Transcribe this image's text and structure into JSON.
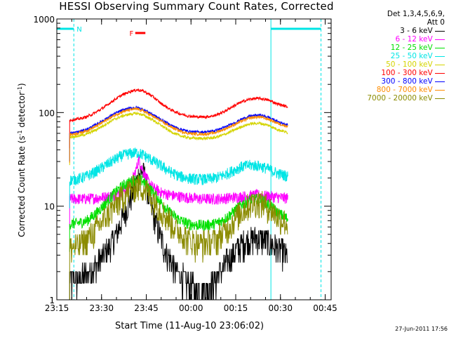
{
  "chart_data": {
    "type": "line",
    "title": "HESSI Observing Summary Count Rates, Corrected",
    "ylabel_prefix": "Corrected Count Rate (s",
    "ylabel_sup": "-1",
    "ylabel_mid": " detector",
    "ylabel_sup2": "-1",
    "ylabel_suffix": ")",
    "xlabel": "Start Time (11-Aug-10 23:06:02)",
    "yscale": "log",
    "ylim": [
      1,
      1000
    ],
    "xlim": [
      9,
      101
    ],
    "x_unit": "minutes after 23:06:02",
    "xticks": [
      {
        "t": 9,
        "label": "23:15"
      },
      {
        "t": 24,
        "label": "23:30"
      },
      {
        "t": 39,
        "label": "23:45"
      },
      {
        "t": 54,
        "label": "00:00"
      },
      {
        "t": 69,
        "label": "00:15"
      },
      {
        "t": 84,
        "label": "00:30"
      },
      {
        "t": 99,
        "label": "00:45"
      }
    ],
    "yticks": [
      {
        "v": 1,
        "label": "1"
      },
      {
        "v": 10,
        "label": "10"
      },
      {
        "v": 100,
        "label": "100"
      },
      {
        "v": 1000,
        "label": "1000"
      }
    ],
    "legend_header": [
      "Det 1,3,4,5,6,9,",
      "Att 0"
    ],
    "annotations": [
      {
        "label": "N",
        "t": 14.7,
        "color": "#00e5e5",
        "bar": [
          0,
          14.7
        ],
        "bar2": [
          80.8,
          97.6
        ]
      },
      {
        "label": "F",
        "t": 35,
        "color": "#ff0000",
        "bar": [
          35.3,
          38.7
        ]
      }
    ],
    "vlines": [
      {
        "t": 14.7,
        "style": "dash"
      },
      {
        "t": 80.8,
        "style": "solid"
      },
      {
        "t": 97.6,
        "style": "dash"
      }
    ],
    "observation_start": 13.3,
    "observation_end": 86.5,
    "series": [
      {
        "name": "3 - 6 keV",
        "color": "#000000",
        "points": [
          [
            13.3,
            1.6
          ],
          [
            17,
            1.7
          ],
          [
            21,
            2.1
          ],
          [
            25,
            3
          ],
          [
            29,
            5
          ],
          [
            32,
            9
          ],
          [
            34,
            13
          ],
          [
            35.5,
            17
          ],
          [
            36.5,
            22
          ],
          [
            37.5,
            24
          ],
          [
            38.5,
            21
          ],
          [
            40,
            12
          ],
          [
            42,
            7
          ],
          [
            44,
            4.5
          ],
          [
            46,
            3
          ],
          [
            49,
            2.1
          ],
          [
            52,
            1.6
          ],
          [
            55,
            1.3
          ],
          [
            58,
            1.3
          ],
          [
            61,
            1.5
          ],
          [
            64,
            2
          ],
          [
            67,
            2.9
          ],
          [
            70,
            3.7
          ],
          [
            73,
            4.4
          ],
          [
            76,
            4.6
          ],
          [
            79,
            4.4
          ],
          [
            82,
            3.8
          ],
          [
            85,
            3.2
          ],
          [
            86.5,
            2.8
          ]
        ]
      },
      {
        "name": "6 - 12 keV",
        "color": "#ff00ff",
        "points": [
          [
            13.3,
            12
          ],
          [
            18,
            12
          ],
          [
            23,
            12.3
          ],
          [
            28,
            13
          ],
          [
            32,
            15
          ],
          [
            34,
            18
          ],
          [
            35.5,
            24
          ],
          [
            36.5,
            32
          ],
          [
            37.5,
            26
          ],
          [
            39,
            20
          ],
          [
            41,
            16
          ],
          [
            44,
            14
          ],
          [
            48,
            13
          ],
          [
            52,
            12.5
          ],
          [
            57,
            12
          ],
          [
            62,
            12
          ],
          [
            67,
            12.3
          ],
          [
            72,
            12.8
          ],
          [
            76,
            13.2
          ],
          [
            80,
            12.8
          ],
          [
            84,
            12.4
          ],
          [
            86.5,
            12.2
          ]
        ]
      },
      {
        "name": "12 - 25 keV",
        "color": "#00e000",
        "points": [
          [
            13.3,
            6.5
          ],
          [
            16,
            6.6
          ],
          [
            19,
            7
          ],
          [
            22,
            8.3
          ],
          [
            25,
            10.5
          ],
          [
            28,
            13.5
          ],
          [
            31,
            16.5
          ],
          [
            34,
            18.5
          ],
          [
            36,
            19.5
          ],
          [
            38,
            18.5
          ],
          [
            41,
            14.5
          ],
          [
            44,
            11
          ],
          [
            47,
            8.5
          ],
          [
            50,
            7.2
          ],
          [
            53,
            6.5
          ],
          [
            56,
            6.3
          ],
          [
            59,
            6.3
          ],
          [
            62,
            6.5
          ],
          [
            65,
            7.2
          ],
          [
            68,
            8.6
          ],
          [
            71,
            10.5
          ],
          [
            74,
            11.8
          ],
          [
            77,
            12
          ],
          [
            80,
            10.5
          ],
          [
            83,
            8.6
          ],
          [
            86.5,
            7.3
          ]
        ]
      },
      {
        "name": "25 - 50 keV",
        "color": "#00e5e5",
        "points": [
          [
            13.3,
            19
          ],
          [
            16,
            19.5
          ],
          [
            19,
            21
          ],
          [
            22,
            23.5
          ],
          [
            25,
            27
          ],
          [
            28,
            31
          ],
          [
            31,
            35
          ],
          [
            34,
            37
          ],
          [
            36,
            37.5
          ],
          [
            38,
            35.5
          ],
          [
            41,
            31
          ],
          [
            44,
            27
          ],
          [
            47,
            23.5
          ],
          [
            50,
            21
          ],
          [
            53,
            20
          ],
          [
            56,
            19.5
          ],
          [
            59,
            19.5
          ],
          [
            62,
            20
          ],
          [
            65,
            21.5
          ],
          [
            68,
            24
          ],
          [
            71,
            26.5
          ],
          [
            74,
            27.5
          ],
          [
            77,
            27
          ],
          [
            80,
            25
          ],
          [
            83,
            22.5
          ],
          [
            86.5,
            21
          ]
        ]
      },
      {
        "name": "50 - 100 keV",
        "color": "#d4d400",
        "points": [
          [
            13.3,
            55
          ],
          [
            16,
            56
          ],
          [
            19,
            59
          ],
          [
            22,
            65
          ],
          [
            25,
            74
          ],
          [
            28,
            84
          ],
          [
            31,
            92
          ],
          [
            34,
            97
          ],
          [
            36,
            98
          ],
          [
            38,
            94
          ],
          [
            41,
            84
          ],
          [
            44,
            73
          ],
          [
            47,
            63
          ],
          [
            50,
            57
          ],
          [
            53,
            54
          ],
          [
            56,
            53
          ],
          [
            59,
            53
          ],
          [
            62,
            54
          ],
          [
            65,
            58
          ],
          [
            68,
            64
          ],
          [
            71,
            71
          ],
          [
            74,
            76
          ],
          [
            77,
            77
          ],
          [
            80,
            73
          ],
          [
            83,
            66
          ],
          [
            86.5,
            61
          ]
        ]
      },
      {
        "name": "100 - 300 keV",
        "color": "#ff0000",
        "points": [
          [
            13.3,
            83
          ],
          [
            16,
            85
          ],
          [
            19,
            90
          ],
          [
            22,
            100
          ],
          [
            25,
            115
          ],
          [
            28,
            135
          ],
          [
            31,
            155
          ],
          [
            34,
            170
          ],
          [
            36,
            175
          ],
          [
            38,
            170
          ],
          [
            41,
            150
          ],
          [
            44,
            125
          ],
          [
            47,
            108
          ],
          [
            50,
            98
          ],
          [
            53,
            92
          ],
          [
            56,
            90
          ],
          [
            59,
            90
          ],
          [
            62,
            93
          ],
          [
            65,
            102
          ],
          [
            68,
            116
          ],
          [
            71,
            130
          ],
          [
            74,
            140
          ],
          [
            77,
            142
          ],
          [
            80,
            136
          ],
          [
            83,
            124
          ],
          [
            86.5,
            115
          ]
        ]
      },
      {
        "name": "300 - 800 keV",
        "color": "#0000ff",
        "points": [
          [
            13.3,
            60
          ],
          [
            16,
            62
          ],
          [
            19,
            66
          ],
          [
            22,
            74
          ],
          [
            25,
            84
          ],
          [
            28,
            96
          ],
          [
            31,
            106
          ],
          [
            34,
            112
          ],
          [
            36,
            113
          ],
          [
            38,
            108
          ],
          [
            41,
            96
          ],
          [
            44,
            84
          ],
          [
            47,
            74
          ],
          [
            50,
            67
          ],
          [
            53,
            63
          ],
          [
            56,
            62
          ],
          [
            59,
            62
          ],
          [
            62,
            64
          ],
          [
            65,
            69
          ],
          [
            68,
            76
          ],
          [
            71,
            85
          ],
          [
            74,
            92
          ],
          [
            77,
            94
          ],
          [
            80,
            89
          ],
          [
            83,
            80
          ],
          [
            86.5,
            74
          ]
        ]
      },
      {
        "name": "800 - 7000 keV",
        "color": "#ff8c00",
        "points": [
          [
            13.3,
            58
          ],
          [
            16,
            60
          ],
          [
            19,
            64
          ],
          [
            22,
            71
          ],
          [
            25,
            81
          ],
          [
            28,
            92
          ],
          [
            31,
            102
          ],
          [
            34,
            108
          ],
          [
            36,
            109
          ],
          [
            38,
            104
          ],
          [
            41,
            92
          ],
          [
            44,
            81
          ],
          [
            47,
            71
          ],
          [
            50,
            64
          ],
          [
            53,
            60
          ],
          [
            56,
            59
          ],
          [
            59,
            59
          ],
          [
            62,
            61
          ],
          [
            65,
            66
          ],
          [
            68,
            73
          ],
          [
            71,
            81
          ],
          [
            74,
            88
          ],
          [
            77,
            90
          ],
          [
            80,
            85
          ],
          [
            83,
            77
          ],
          [
            86.5,
            71
          ]
        ]
      },
      {
        "name": "7000 - 20000 keV",
        "color": "#8b8b00",
        "points": [
          [
            13.3,
            3.6
          ],
          [
            16,
            3.8
          ],
          [
            19,
            4.4
          ],
          [
            22,
            5.6
          ],
          [
            25,
            7.4
          ],
          [
            28,
            9.8
          ],
          [
            31,
            12.8
          ],
          [
            34,
            15.5
          ],
          [
            36,
            16.8
          ],
          [
            38,
            16
          ],
          [
            41,
            12.5
          ],
          [
            44,
            9.2
          ],
          [
            47,
            6.9
          ],
          [
            50,
            5.4
          ],
          [
            53,
            4.5
          ],
          [
            56,
            4.1
          ],
          [
            59,
            4.1
          ],
          [
            62,
            4.4
          ],
          [
            65,
            5.3
          ],
          [
            68,
            6.8
          ],
          [
            71,
            8.9
          ],
          [
            74,
            10.6
          ],
          [
            77,
            11.2
          ],
          [
            80,
            9.8
          ],
          [
            83,
            7.8
          ],
          [
            86.5,
            6.4
          ]
        ]
      }
    ]
  },
  "footer": {
    "date_stamp": "27-Jun-2011 17:56"
  }
}
